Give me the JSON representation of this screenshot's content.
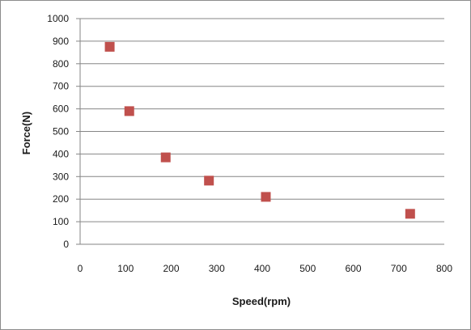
{
  "chart_data": {
    "type": "scatter",
    "xlabel": "Speed(rpm)",
    "ylabel": "Force(N)",
    "xlim": [
      0,
      800
    ],
    "ylim": [
      0,
      1000
    ],
    "x_ticks": [
      "0",
      "100",
      "200",
      "300",
      "400",
      "500",
      "600",
      "700",
      "800"
    ],
    "y_ticks": [
      "0",
      "100",
      "200",
      "300",
      "400",
      "500",
      "600",
      "700",
      "800",
      "900",
      "1000"
    ],
    "grid": "horizontal",
    "legend": "none",
    "marker": "square",
    "colors": {
      "marker": "#c0504d",
      "grid": "#868686",
      "axis": "#868686"
    },
    "series": [
      {
        "x": [
          65,
          108,
          188,
          283,
          408,
          725
        ],
        "y": [
          875,
          590,
          385,
          282,
          210,
          135
        ]
      }
    ]
  }
}
